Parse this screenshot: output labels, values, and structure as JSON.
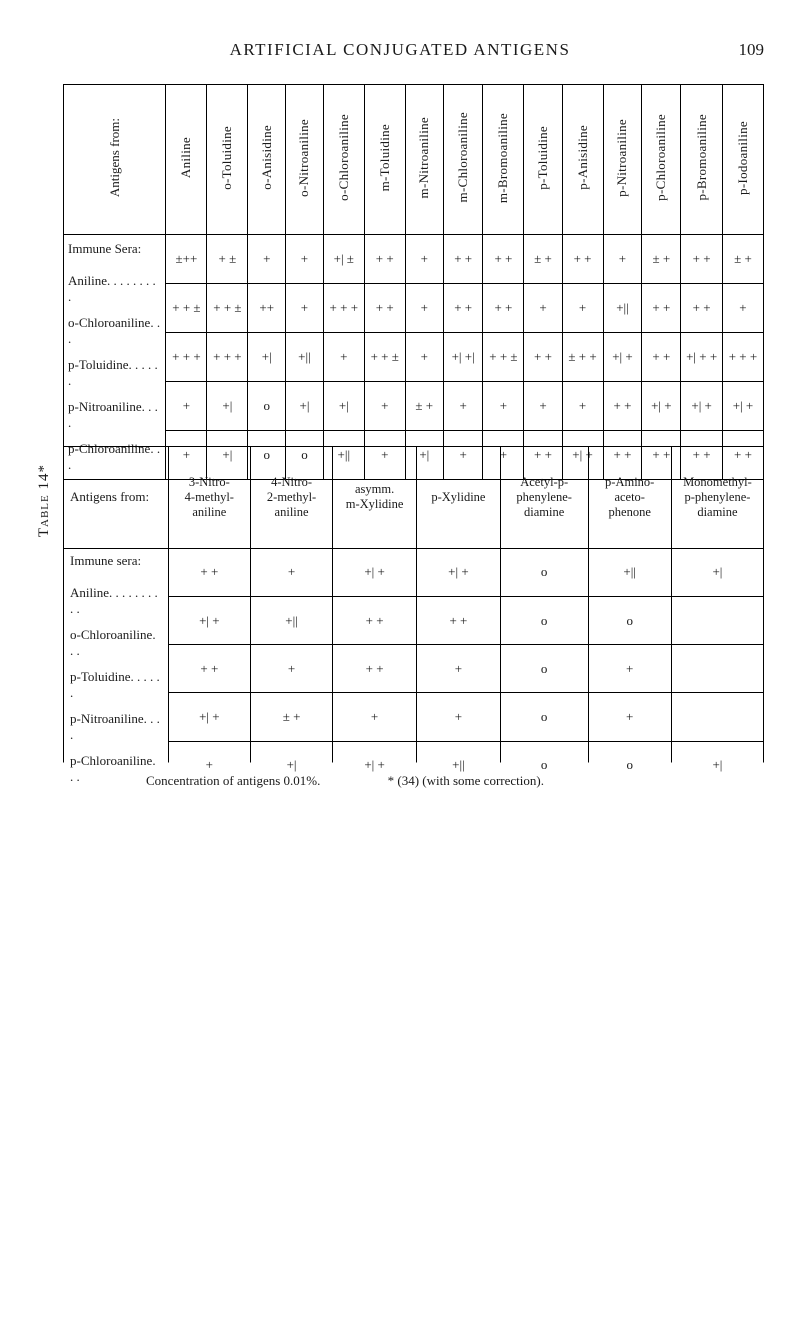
{
  "page": {
    "running_title": "ARTIFICIAL CONJUGATED ANTIGENS",
    "page_number": "109",
    "side_table_label": "Table 14*",
    "footnote": "Concentration of antigens 0.01%.",
    "footnote_citation": "* (34) (with some correction)."
  },
  "table1": {
    "corner_rotated": "Antigens from:",
    "sera_heading": "Immune Sera:",
    "row_labels": [
      "Aniline. . . . . . . . .",
      "o-Chloroaniline. . .",
      "p-Toluidine. . . . . .",
      "p-Nitroaniline. . . .",
      "p-Chloroaniline. . ."
    ],
    "columns": [
      {
        "label": "Aniline",
        "vals": [
          "±++",
          "+ + ±",
          "+ + +",
          "+",
          "+"
        ]
      },
      {
        "label": "o-Toluidine",
        "vals": [
          "+ ±",
          "+ + ±",
          "+ + +",
          "+|",
          "+|"
        ]
      },
      {
        "label": "o-Anisidine",
        "vals": [
          "+",
          "++",
          "+|",
          "o",
          "o"
        ]
      },
      {
        "label": "o-Nitroaniline",
        "vals": [
          "+",
          "+",
          "+||",
          "+|",
          "o"
        ]
      },
      {
        "label": "o-Chloroaniline",
        "vals": [
          "+| ±",
          "+ + +",
          "+",
          "+|",
          "+||"
        ]
      },
      {
        "label": "m-Toluidine",
        "vals": [
          "+ +",
          "+ +",
          "+ + ±",
          "+",
          "+"
        ]
      },
      {
        "label": "m-Nitroaniline",
        "vals": [
          "+",
          "+",
          "+",
          "± +",
          "+|"
        ]
      },
      {
        "label": "m-Chloroaniline",
        "vals": [
          "+ +",
          "+ +",
          "+| +|",
          "+",
          "+"
        ]
      },
      {
        "label": "m-Bromoaniline",
        "vals": [
          "+ +",
          "+ +",
          "+ + ±",
          "+",
          "+"
        ]
      },
      {
        "label": "p-Toluidine",
        "vals": [
          "± +",
          "+",
          "+ +",
          "+",
          "+ +"
        ]
      },
      {
        "label": "p-Anisidine",
        "vals": [
          "+ +",
          "+",
          "± + +",
          "+",
          "+| +"
        ]
      },
      {
        "label": "p-Nitroaniline",
        "vals": [
          "+",
          "+||",
          "+| +",
          "+ +",
          "+ +"
        ]
      },
      {
        "label": "p-Chloroaniline",
        "vals": [
          "± +",
          "+ +",
          "+ +",
          "+| +",
          "+ +"
        ]
      },
      {
        "label": "p-Bromoaniline",
        "vals": [
          "+ +",
          "+ +",
          "+| + +",
          "+| +",
          "+ +"
        ]
      },
      {
        "label": "p-Iodoaniline",
        "vals": [
          "± +",
          "+",
          "+ + +",
          "+| +",
          "+ +"
        ]
      }
    ]
  },
  "table2": {
    "corner": "Antigens from:",
    "sera_heading": "Immune sera:",
    "row_labels": [
      "Aniline. . . . . . . . . .",
      "o-Chloroaniline. . .",
      "p-Toluidine. . . . . .",
      "p-Nitroaniline. . . .",
      "p-Chloroaniline. . ."
    ],
    "columns": [
      {
        "label": "3-Nitro-\n4-methyl-\naniline",
        "vals": [
          "+ +",
          "+| +",
          "+ +",
          "+| +",
          "+"
        ]
      },
      {
        "label": "4-Nitro-\n2-methyl-\naniline",
        "vals": [
          "+",
          "+||",
          "+",
          "± +",
          "+|"
        ]
      },
      {
        "label": "asymm.\nm-Xylidine",
        "vals": [
          "+| +",
          "+ +",
          "+ +",
          "+",
          "+| +"
        ]
      },
      {
        "label": "p-Xylidine",
        "vals": [
          "+| +",
          "+ +",
          "+",
          "+",
          "+||"
        ]
      },
      {
        "label": "Acetyl-p-\nphenylene-\ndiamine",
        "vals": [
          "o",
          "o",
          "o",
          "o",
          "o"
        ]
      },
      {
        "label": "p-Amino-\naceto-\nphenone",
        "vals": [
          "+||",
          "o",
          "+",
          "+",
          "o"
        ]
      },
      {
        "label": "Monomethyl-\np-phenylene-\ndiamine",
        "vals": [
          "+|",
          "",
          "",
          "",
          "+|"
        ]
      }
    ]
  },
  "style": {
    "bg": "#ffffff",
    "text": "#1a1a1a",
    "rule": "#000000",
    "font_body_pt": 13,
    "font_title_pt": 17
  }
}
